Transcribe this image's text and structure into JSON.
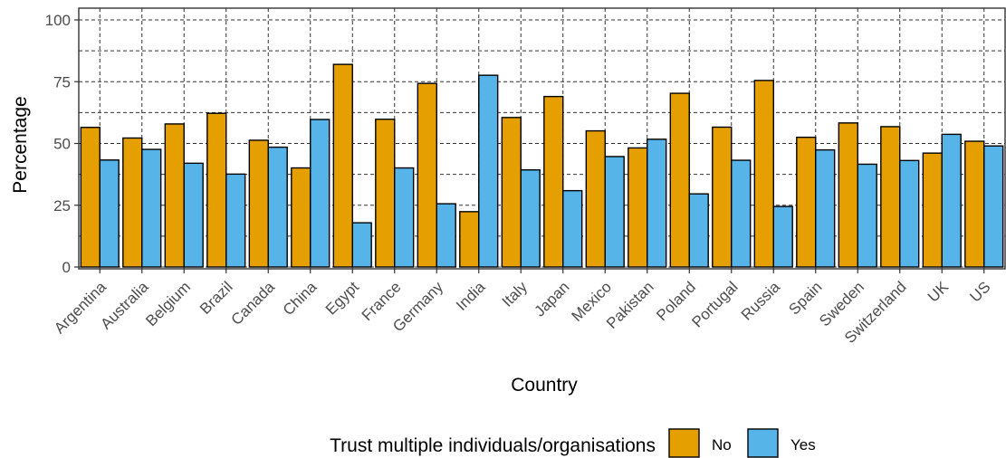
{
  "chart_data": {
    "type": "bar",
    "xlabel": "Country",
    "ylabel": "Percentage",
    "ylim": [
      0,
      100
    ],
    "yticks": [
      "0",
      "25",
      "50",
      "75",
      "100"
    ],
    "grid": true,
    "legend_position": "bottom",
    "categories": [
      "Argentina",
      "Australia",
      "Belgium",
      "Brazil",
      "Canada",
      "China",
      "Egypt",
      "France",
      "Germany",
      "India",
      "Italy",
      "Japan",
      "Mexico",
      "Pakistan",
      "Poland",
      "Portugal",
      "Russia",
      "Spain",
      "Sweden",
      "Switzerland",
      "UK",
      "US"
    ],
    "legend_title": "Trust multiple individuals/organisations",
    "series": [
      {
        "name": "No",
        "color": "#E69F00",
        "values": [
          56.5,
          52.2,
          57.9,
          62.2,
          51.3,
          40.1,
          82.0,
          59.8,
          74.3,
          22.4,
          60.5,
          69.0,
          55.1,
          48.2,
          70.3,
          56.6,
          75.5,
          52.5,
          58.3,
          56.8,
          46.1,
          50.9
        ]
      },
      {
        "name": "Yes",
        "color": "#56B4E9",
        "values": [
          43.3,
          47.6,
          42.0,
          37.6,
          48.5,
          59.7,
          17.9,
          40.1,
          25.6,
          77.6,
          39.3,
          30.9,
          44.7,
          51.7,
          29.6,
          43.2,
          24.5,
          47.4,
          41.6,
          43.1,
          53.7,
          49.0
        ]
      }
    ]
  }
}
